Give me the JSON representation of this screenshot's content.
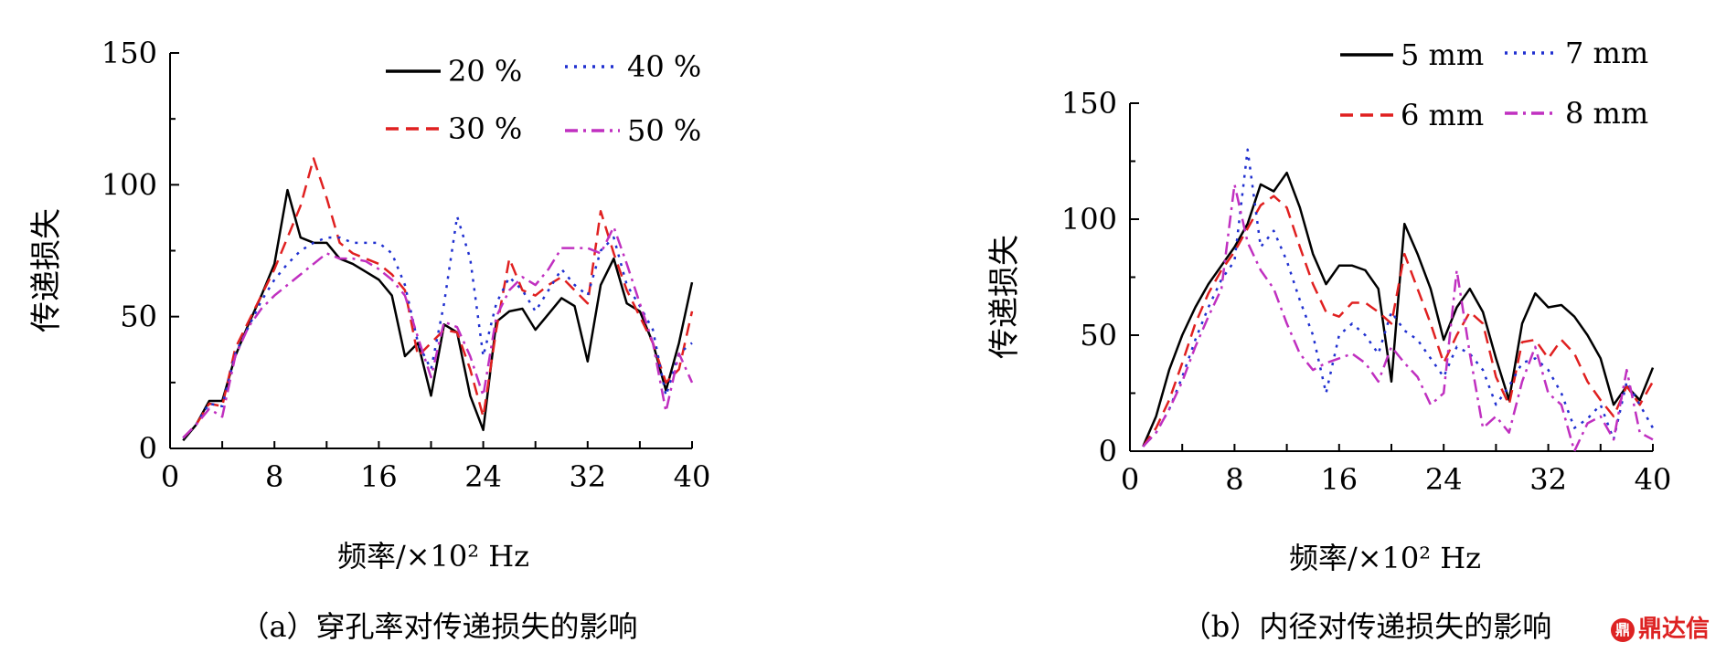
{
  "watermark": "鼎达信",
  "chart_data": [
    {
      "type": "line",
      "caption": "（a）穿孔率对传递损失的影响",
      "xlabel": "频率/×10² Hz",
      "ylabel": "传递损失",
      "xlim": [
        0,
        40
      ],
      "ylim": [
        0,
        150
      ],
      "xticks": [
        0,
        8,
        16,
        24,
        32,
        40
      ],
      "yticks": [
        0,
        50,
        100,
        150
      ],
      "grid": false,
      "legend_position": "top-right",
      "x": [
        1,
        2,
        3,
        4,
        5,
        6,
        7,
        8,
        9,
        10,
        11,
        12,
        13,
        14,
        15,
        16,
        17,
        18,
        19,
        20,
        21,
        22,
        23,
        24,
        25,
        26,
        27,
        28,
        29,
        30,
        31,
        32,
        33,
        34,
        35,
        36,
        37,
        38,
        39,
        40
      ],
      "series": [
        {
          "name": "20 %",
          "color": "#000000",
          "style": "solid",
          "values": [
            3,
            9,
            18,
            18,
            35,
            47,
            58,
            70,
            98,
            80,
            78,
            78,
            72,
            70,
            67,
            64,
            58,
            35,
            40,
            20,
            47,
            44,
            20,
            7,
            48,
            52,
            53,
            45,
            51,
            57,
            54,
            33,
            62,
            72,
            55,
            52,
            40,
            22,
            40,
            63
          ]
        },
        {
          "name": "30 %",
          "color": "#e02020",
          "style": "dashed",
          "values": [
            4,
            9,
            17,
            16,
            38,
            48,
            58,
            68,
            80,
            92,
            110,
            95,
            78,
            74,
            72,
            70,
            66,
            60,
            35,
            40,
            45,
            44,
            30,
            12,
            45,
            72,
            60,
            58,
            62,
            65,
            60,
            55,
            90,
            74,
            60,
            50,
            40,
            25,
            30,
            52
          ]
        },
        {
          "name": "40 %",
          "color": "#2030d0",
          "style": "dotted",
          "values": [
            4,
            9,
            17,
            16,
            36,
            46,
            56,
            64,
            70,
            75,
            78,
            80,
            80,
            78,
            78,
            78,
            74,
            62,
            40,
            30,
            55,
            88,
            72,
            35,
            55,
            65,
            60,
            52,
            60,
            68,
            62,
            58,
            75,
            80,
            62,
            54,
            45,
            20,
            36,
            40
          ]
        },
        {
          "name": "50 %",
          "color": "#c030c0",
          "style": "dashdot",
          "values": [
            4,
            9,
            15,
            12,
            35,
            46,
            53,
            58,
            62,
            66,
            70,
            74,
            72,
            72,
            71,
            68,
            64,
            58,
            42,
            27,
            48,
            46,
            35,
            20,
            50,
            60,
            65,
            62,
            68,
            76,
            76,
            76,
            74,
            84,
            70,
            55,
            40,
            14,
            36,
            25
          ]
        }
      ]
    },
    {
      "type": "line",
      "caption": "（b）内径对传递损失的影响",
      "xlabel": "频率/×10² Hz",
      "ylabel": "传递损失",
      "xlim": [
        0,
        40
      ],
      "ylim": [
        0,
        150
      ],
      "xticks": [
        0,
        8,
        16,
        24,
        32,
        40
      ],
      "yticks": [
        0,
        50,
        100,
        150
      ],
      "grid": false,
      "legend_position": "top-right",
      "x": [
        1,
        2,
        3,
        4,
        5,
        6,
        7,
        8,
        9,
        10,
        11,
        12,
        13,
        14,
        15,
        16,
        17,
        18,
        19,
        20,
        21,
        22,
        23,
        24,
        25,
        26,
        27,
        28,
        29,
        30,
        31,
        32,
        33,
        34,
        35,
        36,
        37,
        38,
        39,
        40
      ],
      "series": [
        {
          "name": "5 mm",
          "color": "#000000",
          "style": "solid",
          "values": [
            2,
            15,
            35,
            50,
            62,
            72,
            80,
            88,
            98,
            115,
            112,
            120,
            105,
            85,
            72,
            80,
            80,
            78,
            70,
            30,
            98,
            85,
            70,
            48,
            62,
            70,
            60,
            40,
            22,
            55,
            68,
            62,
            63,
            58,
            50,
            40,
            20,
            28,
            22,
            36
          ]
        },
        {
          "name": "6 mm",
          "color": "#e02020",
          "style": "dashed",
          "values": [
            2,
            10,
            22,
            38,
            55,
            68,
            78,
            86,
            96,
            106,
            110,
            105,
            88,
            72,
            60,
            58,
            64,
            64,
            60,
            55,
            85,
            70,
            55,
            38,
            50,
            60,
            55,
            32,
            20,
            47,
            48,
            40,
            48,
            42,
            30,
            22,
            15,
            28,
            20,
            30
          ]
        },
        {
          "name": "7 mm",
          "color": "#2030d0",
          "style": "dotted",
          "values": [
            2,
            8,
            18,
            32,
            48,
            62,
            74,
            82,
            130,
            88,
            95,
            82,
            65,
            50,
            25,
            50,
            55,
            50,
            42,
            60,
            52,
            48,
            40,
            32,
            45,
            42,
            35,
            20,
            28,
            38,
            40,
            35,
            25,
            10,
            14,
            20,
            5,
            30,
            20,
            10
          ]
        },
        {
          "name": "8 mm",
          "color": "#c030c0",
          "style": "dashdot",
          "values": [
            2,
            8,
            18,
            30,
            45,
            58,
            70,
            115,
            90,
            78,
            70,
            55,
            42,
            35,
            38,
            40,
            42,
            38,
            30,
            45,
            38,
            32,
            20,
            25,
            78,
            42,
            10,
            15,
            8,
            30,
            45,
            25,
            20,
            0,
            12,
            15,
            5,
            35,
            8,
            5
          ]
        }
      ]
    }
  ]
}
